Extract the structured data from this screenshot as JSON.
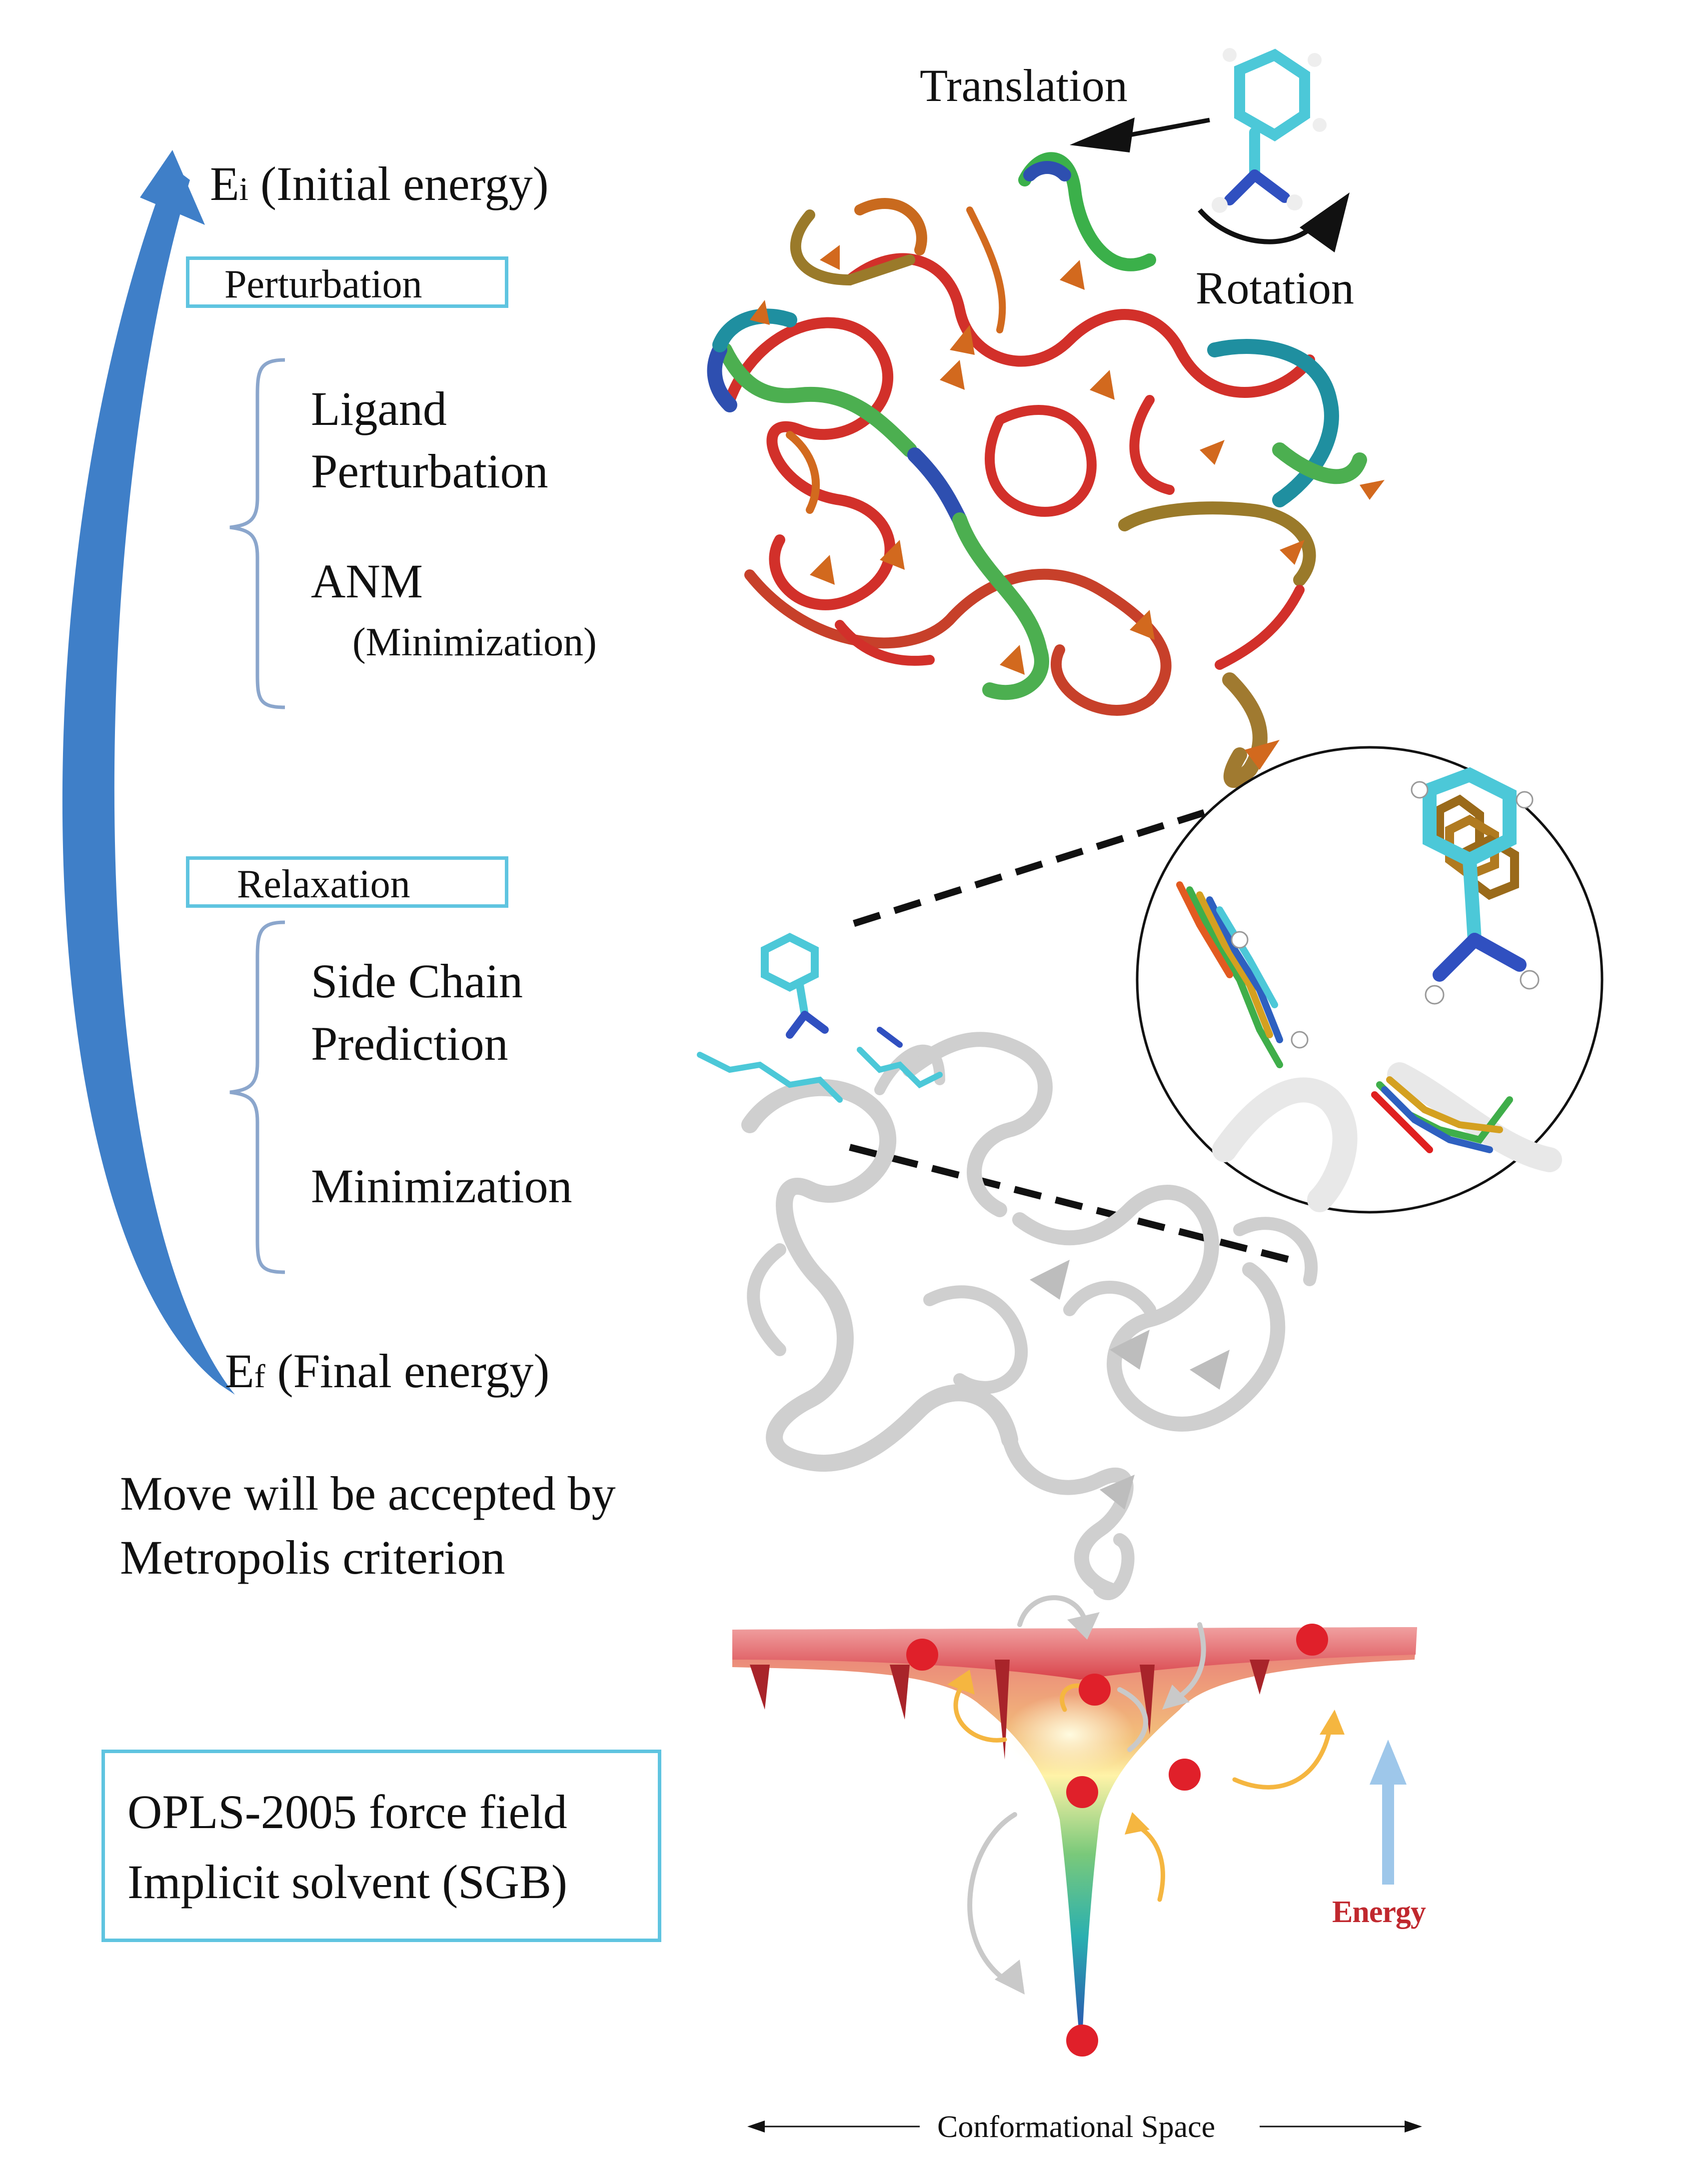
{
  "cycle": {
    "initial_energy": "Ei (Initial energy)",
    "initial_energy_sym": "E",
    "initial_energy_sub": "i",
    "initial_energy_rest": " (Initial energy)",
    "perturbation_title": "Perturbation",
    "perturbation_items": [
      "Ligand",
      "Perturbation",
      "ANM",
      "(Minimization)"
    ],
    "relaxation_title": "Relaxation",
    "relaxation_items": [
      "Side Chain",
      "Prediction",
      "Minimization"
    ],
    "final_energy": "Ef (Final energy)",
    "final_energy_sym": "E",
    "final_energy_sub": "f",
    "final_energy_rest": " (Final energy)"
  },
  "acceptance": [
    "Move will be accepted by",
    "Metropolis criterion"
  ],
  "forcefield": [
    "OPLS-2005 force field",
    "Implicit solvent (SGB)"
  ],
  "ligand_moves": {
    "translation": "Translation",
    "rotation": "Rotation"
  },
  "landscape": {
    "energy_label": "Energy",
    "axis_label": "Conformational Space"
  },
  "colors": {
    "cycle_arrow": "#3f7fc8",
    "box_border": "#5fc4e0",
    "brace": "#8ba6cc",
    "energy_label": "#c0282e",
    "min_dots": "#e0202a"
  }
}
